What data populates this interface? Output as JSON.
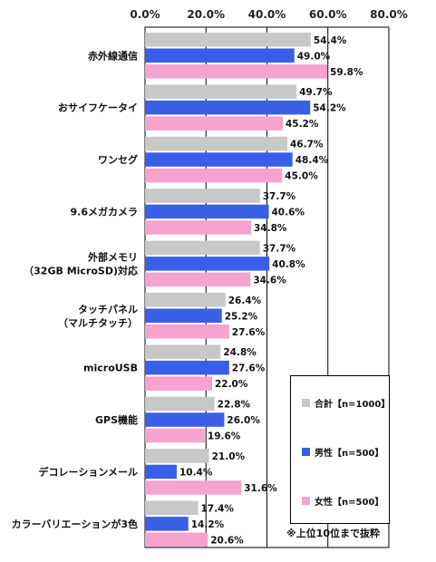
{
  "chart_data": {
    "type": "bar",
    "orientation": "horizontal",
    "x_ticks": [
      "0.0%",
      "20.0%",
      "40.0%",
      "60.0%",
      "80.0%"
    ],
    "xlim": [
      0,
      80
    ],
    "categories": [
      [
        "赤外線通信"
      ],
      [
        "おサイフケータイ"
      ],
      [
        "ワンセグ"
      ],
      [
        "9.6メガカメラ"
      ],
      [
        "外部メモリ",
        "（32GB MicroSD)対応"
      ],
      [
        "タッチパネル",
        "（マルチタッチ）"
      ],
      [
        "microUSB"
      ],
      [
        "GPS機能"
      ],
      [
        "デコレーションメール"
      ],
      [
        "カラーバリエーションが3色"
      ]
    ],
    "series": [
      {
        "name": "合計【n=1000】",
        "color": "#c8c8c8",
        "values": [
          54.4,
          49.7,
          46.7,
          37.7,
          37.7,
          26.4,
          24.8,
          22.8,
          21.0,
          17.4
        ],
        "labels": [
          "54.4%",
          "49.7%",
          "46.7%",
          "37.7%",
          "37.7%",
          "26.4%",
          "24.8%",
          "22.8%",
          "21.0%",
          "17.4%"
        ]
      },
      {
        "name": "男性【n=500】",
        "color": "#3a5ee6",
        "values": [
          49.0,
          54.2,
          48.4,
          40.6,
          40.8,
          25.2,
          27.6,
          26.0,
          10.4,
          14.2
        ],
        "labels": [
          "49.0%",
          "54.2%",
          "48.4%",
          "40.6%",
          "40.8%",
          "25.2%",
          "27.6%",
          "26.0%",
          "10.4%",
          "14.2%"
        ]
      },
      {
        "name": "女性【n=500】",
        "color": "#f7a3cf",
        "values": [
          59.8,
          45.2,
          45.0,
          34.8,
          34.6,
          27.6,
          22.0,
          19.6,
          31.6,
          20.6
        ],
        "labels": [
          "59.8%",
          "45.2%",
          "45.0%",
          "34.8%",
          "34.6%",
          "27.6%",
          "22.0%",
          "19.6%",
          "31.6%",
          "20.6%"
        ]
      }
    ],
    "legend_position": "bottom-right",
    "grid": true
  },
  "note": "※上位10位まで抜粋"
}
